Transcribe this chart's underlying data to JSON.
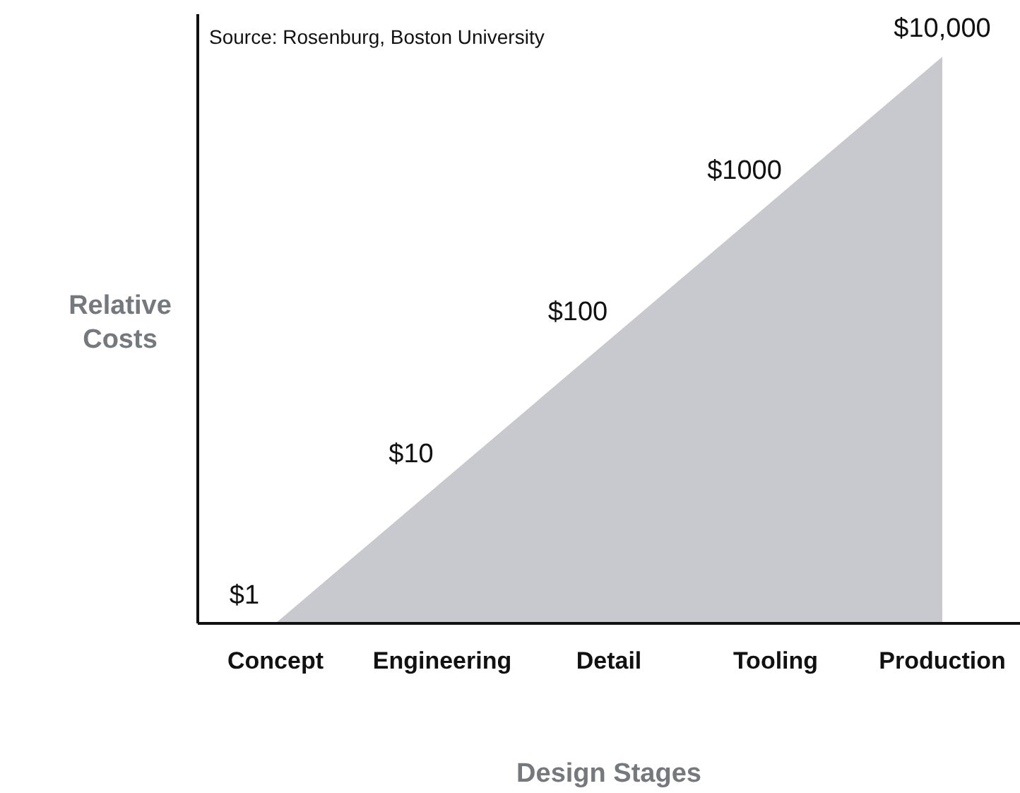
{
  "chart_data": {
    "type": "area",
    "xlabel": "Design Stages",
    "ylabel": "Relative Costs",
    "annotations": [
      "Source: Rosenburg, Boston University"
    ],
    "categories": [
      "Concept",
      "Engineering",
      "Detail",
      "Tooling",
      "Production"
    ],
    "values": [
      1,
      10,
      100,
      1000,
      10000
    ],
    "value_labels": [
      "$1",
      "$10",
      "$100",
      "$1000",
      "$10,000"
    ],
    "color": "#c8c9ce",
    "log": true,
    "ylim": [
      1,
      20000
    ],
    "tick_labels": "x"
  }
}
